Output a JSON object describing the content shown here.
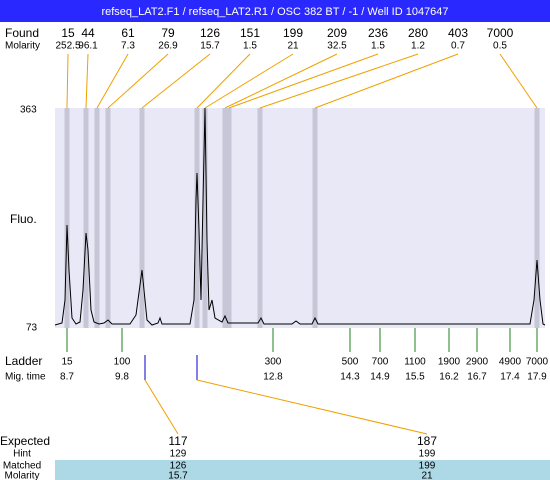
{
  "header": {
    "title": "refseq_LAT2.F1 / refseq_LAT2.R1 / OSC 382 BT / -1 / Well ID 1047647"
  },
  "found": {
    "label": "Found",
    "sizes": [
      15,
      44,
      61,
      79,
      126,
      151,
      199,
      209,
      236,
      280,
      403,
      7000
    ],
    "molarity_label": "Molarity",
    "molarity": [
      252.5,
      96.1,
      7.3,
      26.9,
      15.7,
      1.5,
      21,
      32.5,
      1.5,
      1.2,
      0.7,
      0.5
    ]
  },
  "axis": {
    "top": 363,
    "bottom": 73,
    "label": "Fluo."
  },
  "ladder": {
    "label": "Ladder",
    "sizes": [
      15,
      100,
      300,
      500,
      700,
      1100,
      1900,
      2900,
      4900,
      7000
    ],
    "time_label": "Mig. time",
    "times": [
      8.7,
      9.8,
      12.8,
      14.3,
      14.9,
      15.5,
      16.2,
      16.7,
      17.4,
      17.9
    ]
  },
  "expected": {
    "label": "Expected",
    "values": [
      117,
      187
    ],
    "hint_label": "Hint",
    "hint": [
      129,
      199
    ],
    "matched_label": "Matched",
    "matched": [
      126,
      199
    ],
    "molarity_label": "Molarity",
    "molarity": [
      15.7,
      21
    ]
  }
}
